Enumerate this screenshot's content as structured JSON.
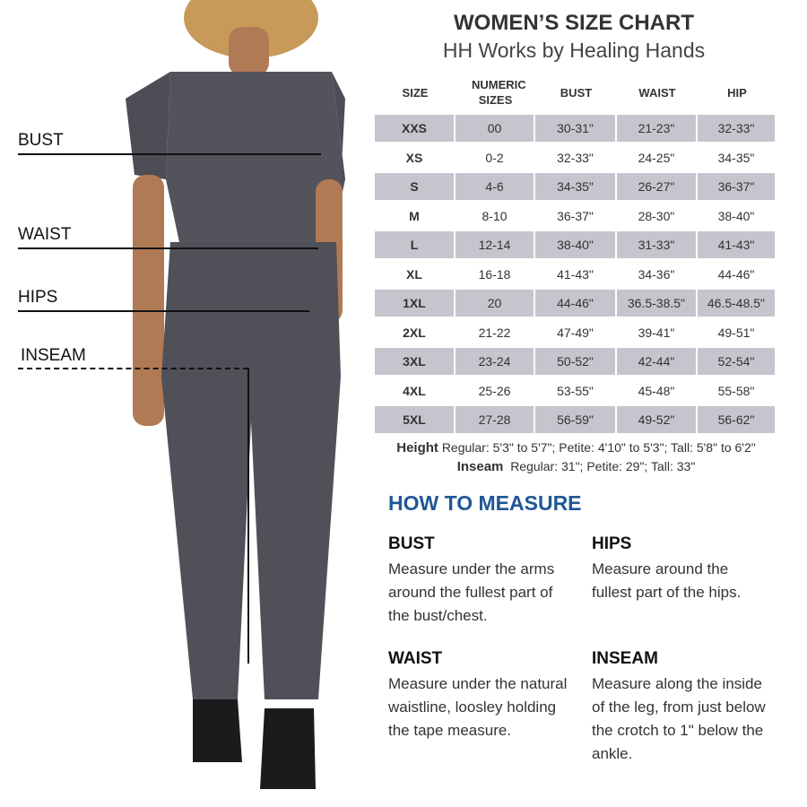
{
  "header": {
    "title": "WOMEN’S SIZE CHART",
    "subtitle": "HH Works by Healing Hands"
  },
  "table": {
    "headers": [
      "SIZE",
      "NUMERIC SIZES",
      "BUST",
      "WAIST",
      "HIP"
    ],
    "rows": [
      [
        "XXS",
        "00",
        "30-31\"",
        "21-23\"",
        "32-33\""
      ],
      [
        "XS",
        "0-2",
        "32-33\"",
        "24-25\"",
        "34-35\""
      ],
      [
        "S",
        "4-6",
        "34-35\"",
        "26-27\"",
        "36-37\""
      ],
      [
        "M",
        "8-10",
        "36-37\"",
        "28-30\"",
        "38-40\""
      ],
      [
        "L",
        "12-14",
        "38-40\"",
        "31-33\"",
        "41-43\""
      ],
      [
        "XL",
        "16-18",
        "41-43\"",
        "34-36\"",
        "44-46\""
      ],
      [
        "1XL",
        "20",
        "44-46\"",
        "36.5-38.5\"",
        "46.5-48.5\""
      ],
      [
        "2XL",
        "21-22",
        "47-49\"",
        "39-41\"",
        "49-51\""
      ],
      [
        "3XL",
        "23-24",
        "50-52\"",
        "42-44\"",
        "52-54\""
      ],
      [
        "4XL",
        "25-26",
        "53-55\"",
        "45-48\"",
        "55-58\""
      ],
      [
        "5XL",
        "27-28",
        "56-59\"",
        "49-52\"",
        "56-62\""
      ]
    ],
    "shade_color": "#c5c5cd"
  },
  "notes": {
    "height_label": "Height",
    "height_text": "Regular: 5'3\" to 5'7\"; Petite: 4'10\" to 5'3\"; Tall: 5'8\" to 6'2\"",
    "inseam_label": "Inseam",
    "inseam_text": "Regular: 31\"; Petite: 29\"; Tall: 33\""
  },
  "how_to_measure": {
    "title": "HOW TO MEASURE",
    "title_color": "#1f5796",
    "sections": [
      {
        "heading": "BUST",
        "text": "Measure under the arms around the fullest part of the bust/chest."
      },
      {
        "heading": "HIPS",
        "text": "Measure around the fullest part of the hips."
      },
      {
        "heading": "WAIST",
        "text": "Measure under the natural waistline, loosley holding the tape measure."
      },
      {
        "heading": "INSEAM",
        "text": "Measure along the inside of the leg, from just below the crotch to 1\" below the ankle."
      }
    ]
  },
  "figure": {
    "labels": [
      "BUST",
      "WAIST",
      "HIPS",
      "INSEAM"
    ],
    "garment_color": "#4f5058"
  }
}
